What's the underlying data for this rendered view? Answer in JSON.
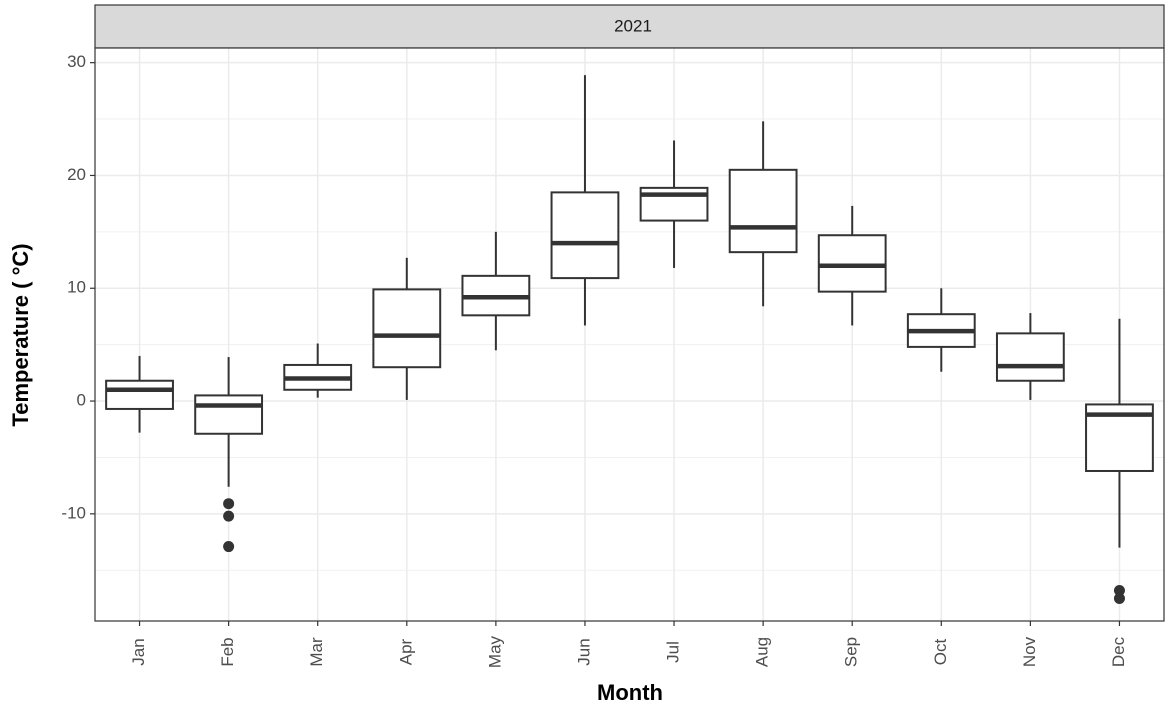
{
  "chart_data": {
    "type": "box",
    "facet": "2021",
    "x_label": "Month",
    "y_label": "Temperature ( °C)",
    "categories": [
      "Jan",
      "Feb",
      "Mar",
      "Apr",
      "May",
      "Jun",
      "Jul",
      "Aug",
      "Sep",
      "Oct",
      "Nov",
      "Dec"
    ],
    "boxes": [
      {
        "low": -2.8,
        "q1": -0.7,
        "median": 1.0,
        "q3": 1.8,
        "high": 4.0,
        "outliers": []
      },
      {
        "low": -7.6,
        "q1": -2.9,
        "median": -0.4,
        "q3": 0.5,
        "high": 3.9,
        "outliers": [
          -9.1,
          -10.2,
          -12.9
        ]
      },
      {
        "low": 0.3,
        "q1": 1.0,
        "median": 2.0,
        "q3": 3.2,
        "high": 5.1,
        "outliers": []
      },
      {
        "low": 0.1,
        "q1": 3.0,
        "median": 5.8,
        "q3": 9.9,
        "high": 12.7,
        "outliers": []
      },
      {
        "low": 4.5,
        "q1": 7.6,
        "median": 9.2,
        "q3": 11.1,
        "high": 15.0,
        "outliers": []
      },
      {
        "low": 6.7,
        "q1": 10.9,
        "median": 14.0,
        "q3": 18.5,
        "high": 28.9,
        "outliers": []
      },
      {
        "low": 11.8,
        "q1": 16.0,
        "median": 18.3,
        "q3": 18.9,
        "high": 23.1,
        "outliers": []
      },
      {
        "low": 8.4,
        "q1": 13.2,
        "median": 15.4,
        "q3": 20.5,
        "high": 24.8,
        "outliers": []
      },
      {
        "low": 6.7,
        "q1": 9.7,
        "median": 12.0,
        "q3": 14.7,
        "high": 17.3,
        "outliers": []
      },
      {
        "low": 2.6,
        "q1": 4.8,
        "median": 6.2,
        "q3": 7.7,
        "high": 10.0,
        "outliers": []
      },
      {
        "low": 0.1,
        "q1": 1.8,
        "median": 3.1,
        "q3": 6.0,
        "high": 7.8,
        "outliers": []
      },
      {
        "low": -13.0,
        "q1": -6.2,
        "median": -1.2,
        "q3": -0.3,
        "high": 7.3,
        "outliers": [
          -16.8,
          -17.5
        ]
      }
    ],
    "color": "#333333",
    "ylim": [
      -19.5,
      31.3
    ],
    "yticks": [
      -10,
      0,
      10,
      20,
      30
    ],
    "grid": true,
    "minor_grid": true
  }
}
